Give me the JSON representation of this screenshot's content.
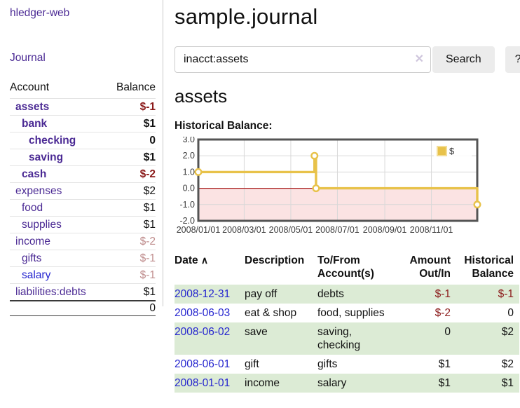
{
  "sidebar": {
    "brand": "hledger-web",
    "nav": {
      "journal": "Journal"
    },
    "accounts": {
      "headers": {
        "account": "Account",
        "balance": "Balance"
      },
      "rows": [
        {
          "name": "assets",
          "balance": "$-1",
          "level": 1,
          "bold": true,
          "negative": true
        },
        {
          "name": "bank",
          "balance": "$1",
          "level": 2,
          "bold": true,
          "negative": false
        },
        {
          "name": "checking",
          "balance": "0",
          "level": 3,
          "bold": true,
          "negative": false
        },
        {
          "name": "saving",
          "balance": "$1",
          "level": 3,
          "bold": true,
          "negative": false
        },
        {
          "name": "cash",
          "balance": "$-2",
          "level": 2,
          "bold": true,
          "negative": true
        },
        {
          "name": "expenses",
          "balance": "$2",
          "level": 1,
          "bold": false,
          "negative": false
        },
        {
          "name": "food",
          "balance": "$1",
          "level": 2,
          "bold": false,
          "negative": false
        },
        {
          "name": "supplies",
          "balance": "$1",
          "level": 2,
          "bold": false,
          "negative": false
        },
        {
          "name": "income",
          "balance": "$-2",
          "level": 1,
          "bold": false,
          "negative": true
        },
        {
          "name": "gifts",
          "balance": "$-1",
          "level": 2,
          "bold": false,
          "negative": true
        },
        {
          "name": "salary",
          "balance": "$-1",
          "level": 2,
          "bold": false,
          "negative": true
        },
        {
          "name": "liabilities:debts",
          "balance": "$1",
          "level": 1,
          "bold": false,
          "negative": false
        }
      ],
      "total": "0"
    }
  },
  "header": {
    "title": "sample.journal"
  },
  "search": {
    "value": "inacct:assets",
    "clear_icon": "✕",
    "button": "Search",
    "help_button": "?"
  },
  "account_page": {
    "title": "assets",
    "chart_label": "Historical Balance:"
  },
  "chart_data": {
    "type": "line",
    "style": "step",
    "title": "Historical Balance:",
    "series": [
      {
        "name": "$",
        "points": [
          {
            "date": "2008-01-01",
            "x": 0,
            "y": 1
          },
          {
            "date": "2008-06-01",
            "x": 152,
            "y": 2
          },
          {
            "date": "2008-06-03",
            "x": 154,
            "y": 0
          },
          {
            "date": "2008-12-31",
            "x": 365,
            "y": -1
          }
        ]
      }
    ],
    "xlim": [
      0,
      365
    ],
    "ylim": [
      -2,
      3
    ],
    "xticks": [
      {
        "x": 0,
        "label": "2008/01/01"
      },
      {
        "x": 60,
        "label": "2008/03/01"
      },
      {
        "x": 121,
        "label": "2008/05/01"
      },
      {
        "x": 182,
        "label": "2008/07/01"
      },
      {
        "x": 244,
        "label": "2008/09/01"
      },
      {
        "x": 305,
        "label": "2008/11/01"
      }
    ],
    "yticks": [
      {
        "y": 3,
        "label": "3.0"
      },
      {
        "y": 2,
        "label": "2.0"
      },
      {
        "y": 1,
        "label": "1.0"
      },
      {
        "y": 0,
        "label": "0.0"
      },
      {
        "y": -1,
        "label": "-1.0"
      },
      {
        "y": -2,
        "label": "-2.0"
      }
    ],
    "legend": {
      "position": "top-right",
      "label": "$"
    },
    "grid": true,
    "colors": {
      "line": "#e8c24a",
      "marker_fill": "#ffffff",
      "below_zero_fill": "#fbe3e3",
      "zero_line": "#a81d1d",
      "grid": "#d8d8d8",
      "border": "#545454",
      "tick_text": "#3c3c3c"
    }
  },
  "register_table": {
    "headers": {
      "date": "Date",
      "sort_icon": "∧",
      "description": "Description",
      "accounts": "To/From Account(s)",
      "amount": "Amount Out/In",
      "balance": "Historical Balance"
    },
    "rows": [
      {
        "date": "2008-12-31",
        "description": "pay off",
        "accounts": "debts",
        "amount": "$-1",
        "balance": "$-1"
      },
      {
        "date": "2008-06-03",
        "description": "eat & shop",
        "accounts": "food, supplies",
        "amount": "$-2",
        "balance": "0"
      },
      {
        "date": "2008-06-02",
        "description": "save",
        "accounts": "saving, checking",
        "amount": "0",
        "balance": "$2"
      },
      {
        "date": "2008-06-01",
        "description": "gift",
        "accounts": "gifts",
        "amount": "$1",
        "balance": "$2"
      },
      {
        "date": "2008-01-01",
        "description": "income",
        "accounts": "salary",
        "amount": "$1",
        "balance": "$1"
      }
    ]
  },
  "colors": {
    "link_purple": "#4b2a94",
    "link_blue": "#2525cf",
    "negative_red": "#8b1a1a",
    "negative_dim": "#bf8d8d",
    "row_green": "#dcebd5",
    "accent_gold": "#e8c24a"
  }
}
